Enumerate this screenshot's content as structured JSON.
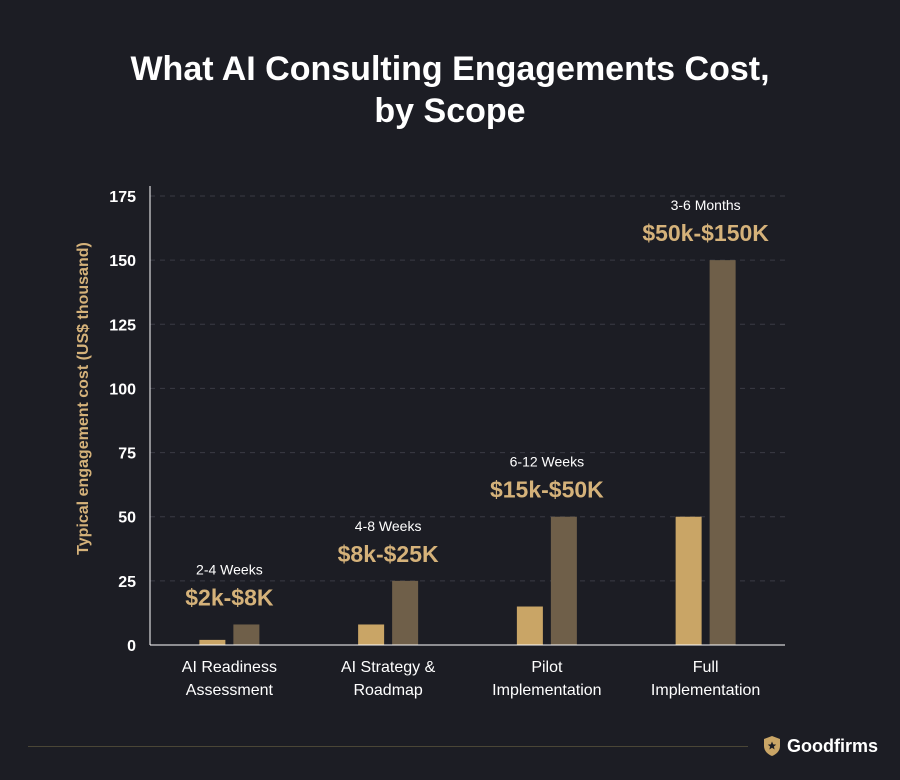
{
  "colors": {
    "background": "#1c1d24",
    "low_bar": "#c9a566",
    "high_bar": "#6f5f49",
    "accent_text": "#d5b27a",
    "grid": "#3a3b44",
    "axis": "#ffffff"
  },
  "chart_data": {
    "type": "bar",
    "title": [
      "What AI Consulting Engagements Cost,",
      "by Scope"
    ],
    "ylabel": "Typical engagement cost (US$ thousand)",
    "ylim": [
      0,
      175
    ],
    "yticks": [
      0,
      25,
      50,
      75,
      100,
      125,
      150,
      175
    ],
    "grid": true,
    "categories": [
      [
        "AI Readiness",
        "Assessment"
      ],
      [
        "AI Strategy &",
        "Roadmap"
      ],
      [
        "Pilot",
        "Implementation"
      ],
      [
        "Full",
        "Implementation"
      ]
    ],
    "series": [
      {
        "values": [
          2,
          8,
          15,
          50
        ]
      },
      {
        "values": [
          8,
          25,
          50,
          150
        ]
      }
    ],
    "annotations": [
      {
        "duration": "2-4 Weeks",
        "range": "$2k-$8K"
      },
      {
        "duration": "4-8 Weeks",
        "range": "$8k-$25K"
      },
      {
        "duration": "6-12 Weeks",
        "range": "$15k-$50K"
      },
      {
        "duration": "3-6 Months",
        "range": "$50k-$150K"
      }
    ]
  },
  "footer": {
    "brand_name": "Goodfirms",
    "brand_icon": "shield-star-icon"
  }
}
